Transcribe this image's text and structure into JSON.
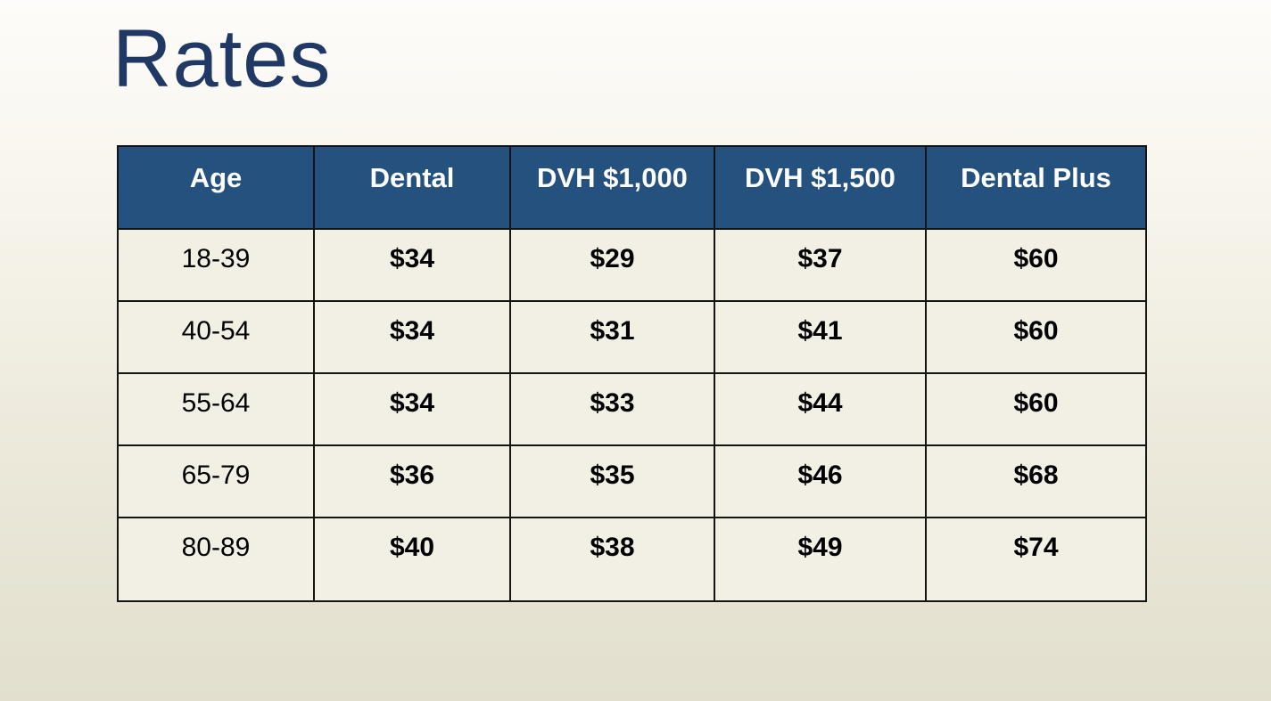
{
  "slide": {
    "title": "Rates"
  },
  "chart_data": {
    "type": "table",
    "title": "Rates",
    "columns": [
      "Age",
      "Dental",
      "DVH $1,000",
      "DVH $1,500",
      "Dental Plus"
    ],
    "rows": [
      [
        "18-39",
        "$34",
        "$29",
        "$37",
        "$60"
      ],
      [
        "40-54",
        "$34",
        "$31",
        "$41",
        "$60"
      ],
      [
        "55-64",
        "$34",
        "$33",
        "$44",
        "$60"
      ],
      [
        "65-79",
        "$36",
        "$35",
        "$46",
        "$68"
      ],
      [
        "80-89",
        "$40",
        "$38",
        "$49",
        "$74"
      ]
    ]
  },
  "colors": {
    "title_text": "#1F3864",
    "header_bg": "#25517F",
    "header_text": "#FFFFFF",
    "cell_bg": "#F2F0E5",
    "cell_text": "#000000",
    "border": "#141414",
    "bg_top": "#FDFCFA",
    "bg_bottom": "#E2DFCE"
  }
}
